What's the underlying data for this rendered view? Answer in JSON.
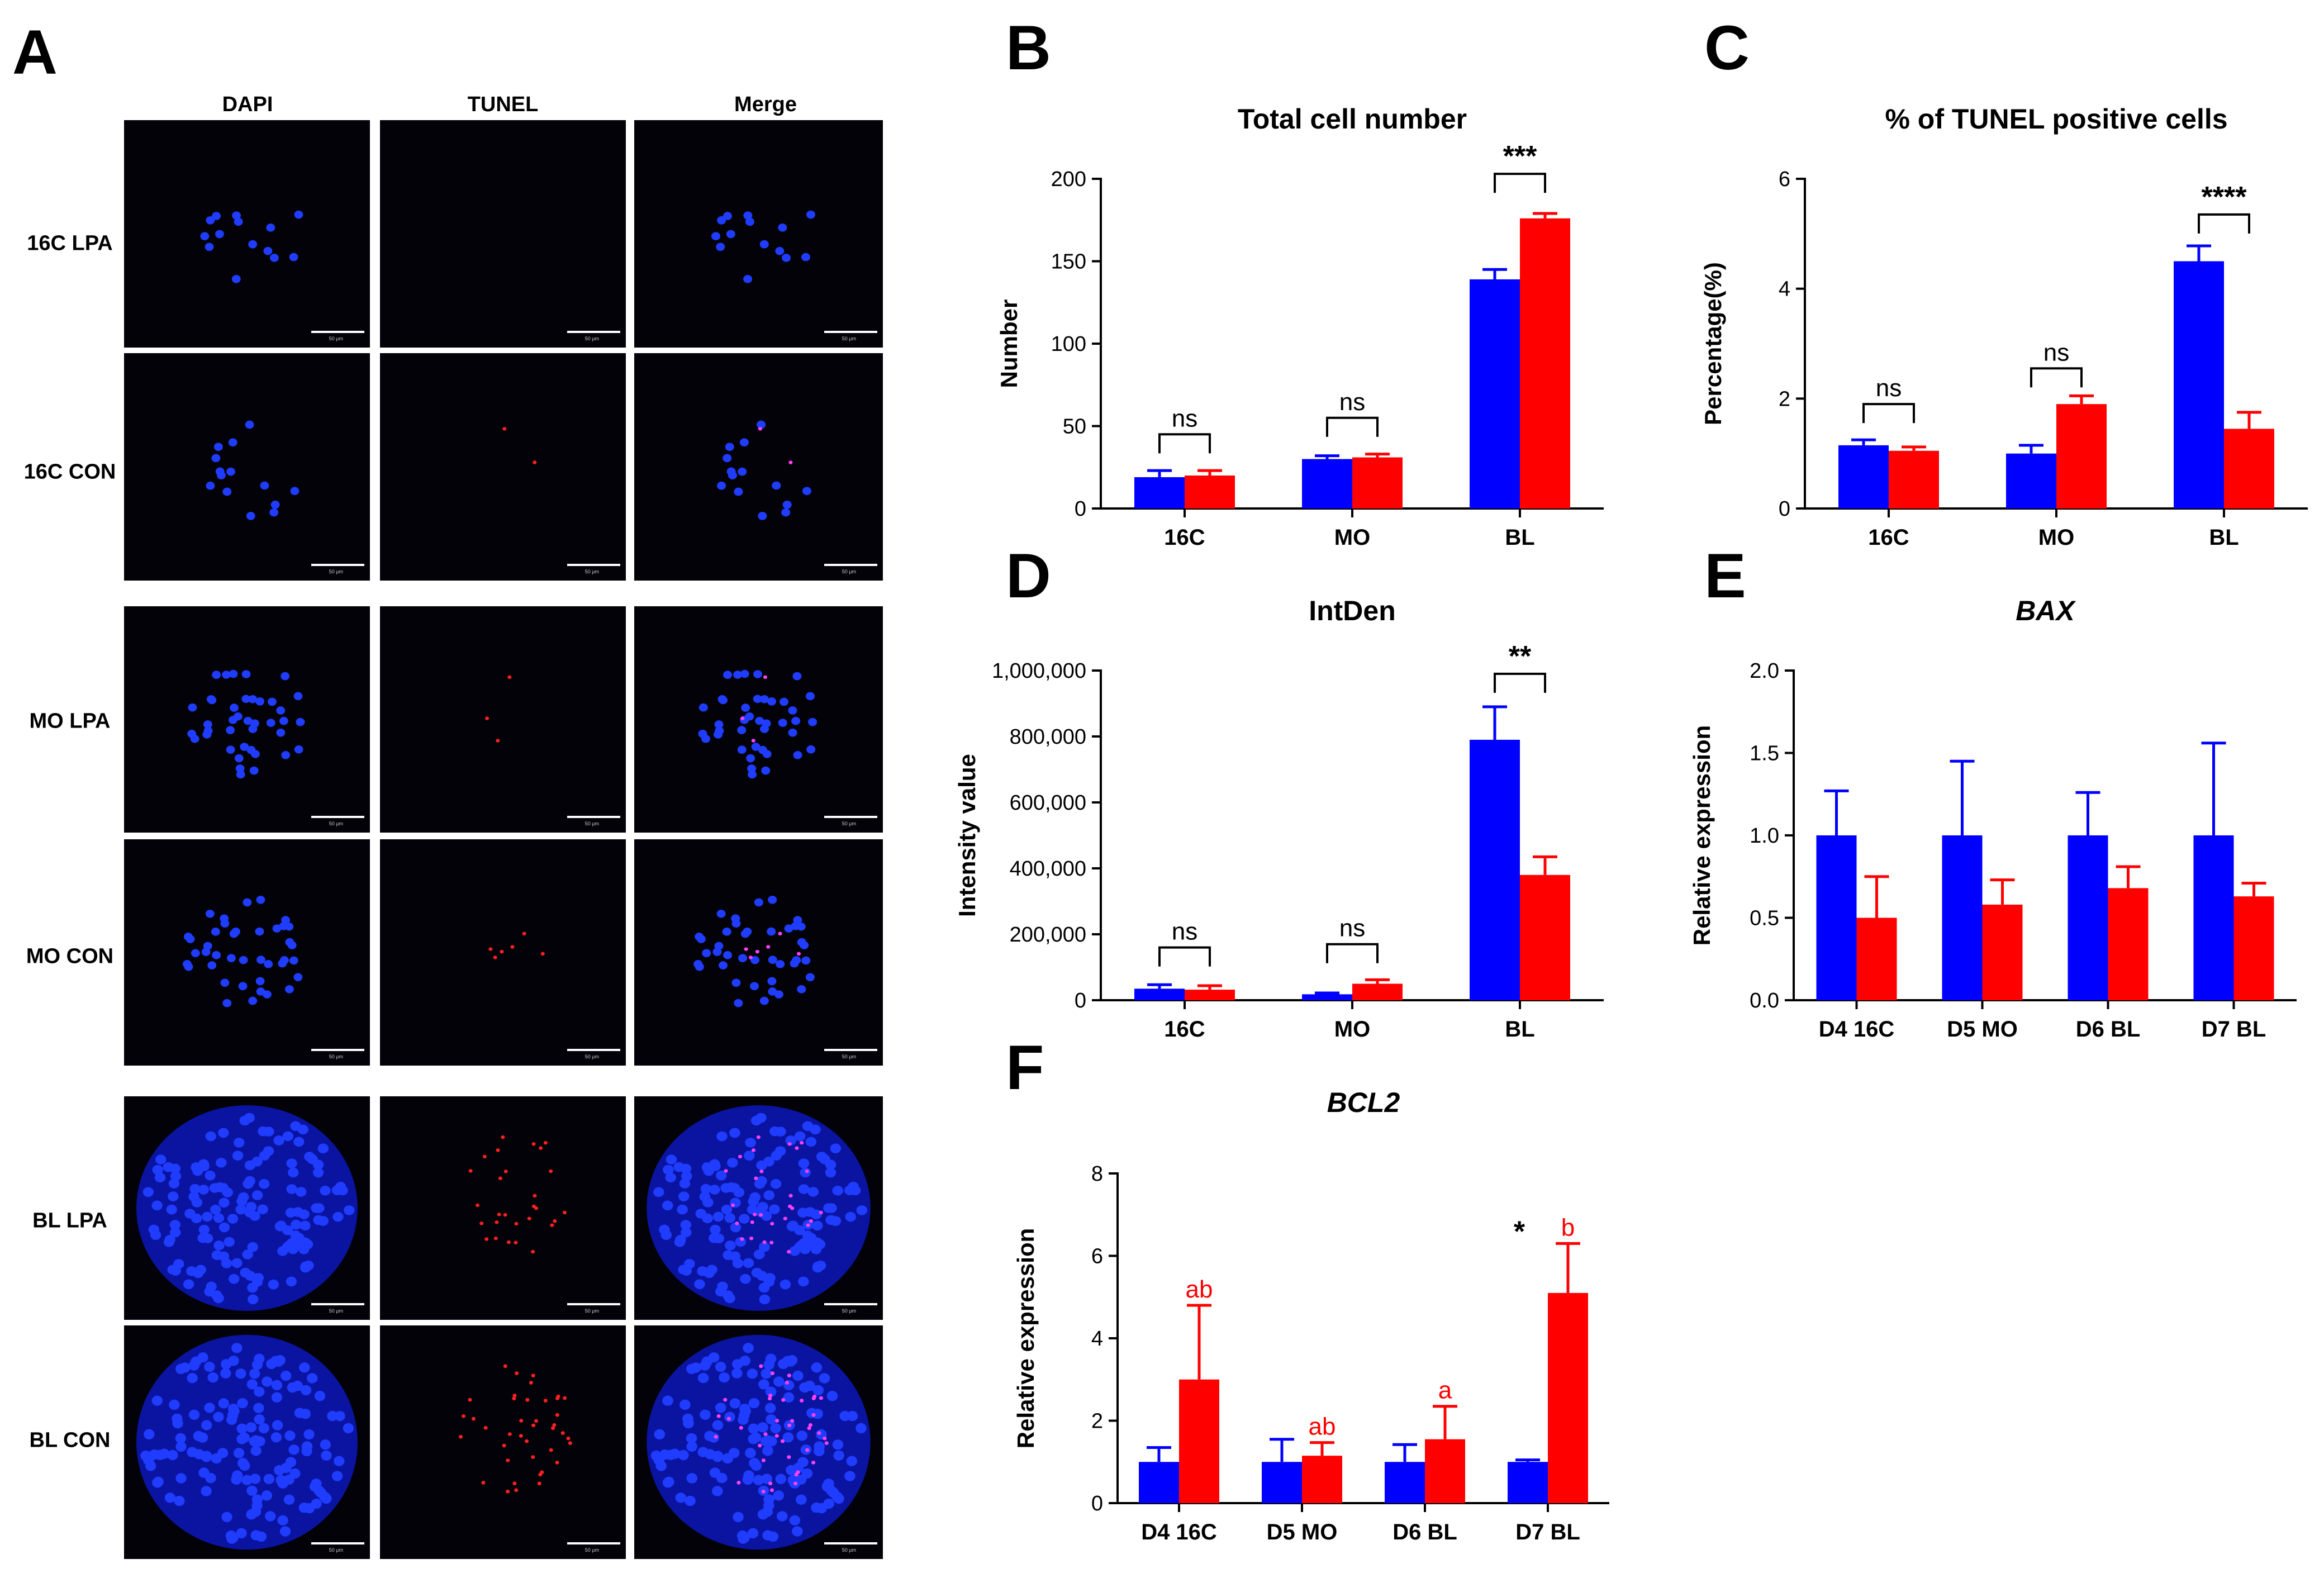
{
  "colors": {
    "blue": "#0000ff",
    "red": "#ff0000",
    "axis": "#000000"
  },
  "panels": {
    "A": {
      "letter": "A",
      "columns": [
        "DAPI",
        "TUNEL",
        "Merge"
      ],
      "rows": [
        "16C LPA",
        "16C CON",
        "MO LPA",
        "MO CON",
        "BL LPA",
        "BL CON"
      ],
      "scale_label": "50 μm"
    }
  },
  "chart_data": [
    {
      "letter": "B",
      "type": "bar",
      "title": "Total cell number",
      "title_italic": false,
      "ylabel": "Number",
      "ylim": [
        0,
        200
      ],
      "yticks": [
        0,
        50,
        100,
        150,
        200
      ],
      "ytick_labels": [
        "0",
        "50",
        "100",
        "150",
        "200"
      ],
      "categories": [
        "16C",
        "MO",
        "BL"
      ],
      "series": [
        {
          "name": "blue",
          "color": "#0000ff",
          "values": [
            19,
            30,
            139
          ],
          "errors": [
            4,
            2,
            6
          ]
        },
        {
          "name": "red",
          "color": "#ff0000",
          "values": [
            20,
            31,
            176
          ],
          "errors": [
            3,
            2,
            3
          ]
        }
      ],
      "significance": [
        {
          "category": 0,
          "label": "ns",
          "y": 45
        },
        {
          "category": 1,
          "label": "ns",
          "y": 55
        },
        {
          "category": 2,
          "label": "***",
          "y": 203
        }
      ],
      "letters": []
    },
    {
      "letter": "C",
      "type": "bar",
      "title": "% of TUNEL positive cells",
      "title_italic": false,
      "ylabel": "Percentage(%)",
      "ylim": [
        0,
        6
      ],
      "yticks": [
        0,
        2,
        4,
        6
      ],
      "ytick_labels": [
        "0",
        "2",
        "4",
        "6"
      ],
      "categories": [
        "16C",
        "MO",
        "BL"
      ],
      "series": [
        {
          "name": "blue",
          "color": "#0000ff",
          "values": [
            1.15,
            1.0,
            4.5
          ],
          "errors": [
            0.1,
            0.15,
            0.28
          ]
        },
        {
          "name": "red",
          "color": "#ff0000",
          "values": [
            1.05,
            1.9,
            1.45
          ],
          "errors": [
            0.07,
            0.15,
            0.3
          ]
        }
      ],
      "significance": [
        {
          "category": 0,
          "label": "ns",
          "y": 1.9
        },
        {
          "category": 1,
          "label": "ns",
          "y": 2.55
        },
        {
          "category": 2,
          "label": "****",
          "y": 5.35
        }
      ],
      "letters": []
    },
    {
      "letter": "D",
      "type": "bar",
      "title": "IntDen",
      "title_italic": false,
      "ylabel": "Intensity value",
      "ylim": [
        0,
        1000000
      ],
      "yticks": [
        0,
        200000,
        400000,
        600000,
        800000,
        1000000
      ],
      "ytick_labels": [
        "0",
        "200,000",
        "400,000",
        "600,000",
        "800,000",
        "1,000,000"
      ],
      "categories": [
        "16C",
        "MO",
        "BL"
      ],
      "series": [
        {
          "name": "blue",
          "color": "#0000ff",
          "values": [
            35000,
            18000,
            790000
          ],
          "errors": [
            12000,
            4000,
            100000
          ]
        },
        {
          "name": "red",
          "color": "#ff0000",
          "values": [
            32000,
            50000,
            380000
          ],
          "errors": [
            12000,
            12000,
            55000
          ]
        }
      ],
      "significance": [
        {
          "category": 0,
          "label": "ns",
          "y": 160000
        },
        {
          "category": 1,
          "label": "ns",
          "y": 170000
        },
        {
          "category": 2,
          "label": "**",
          "y": 990000
        }
      ],
      "letters": []
    },
    {
      "letter": "E",
      "type": "bar",
      "title": "BAX",
      "title_italic": true,
      "ylabel": "Relative expression",
      "ylim": [
        0,
        2
      ],
      "yticks": [
        0,
        0.5,
        1,
        1.5,
        2
      ],
      "ytick_labels": [
        "0.0",
        "0.5",
        "1.0",
        "1.5",
        "2.0"
      ],
      "categories": [
        "D4 16C",
        "D5 MO",
        "D6 BL",
        "D7 BL"
      ],
      "series": [
        {
          "name": "blue",
          "color": "#0000ff",
          "values": [
            1.0,
            1.0,
            1.0,
            1.0
          ],
          "errors": [
            0.27,
            0.45,
            0.26,
            0.56
          ]
        },
        {
          "name": "red",
          "color": "#ff0000",
          "values": [
            0.5,
            0.58,
            0.68,
            0.63
          ],
          "errors": [
            0.25,
            0.15,
            0.13,
            0.08
          ]
        }
      ],
      "significance": [],
      "letters": []
    },
    {
      "letter": "F",
      "type": "bar",
      "title": "BCL2",
      "title_italic": true,
      "ylabel": "Relative expression",
      "ylim": [
        0,
        8
      ],
      "yticks": [
        0,
        2,
        4,
        6,
        8
      ],
      "ytick_labels": [
        "0",
        "2",
        "4",
        "6",
        "8"
      ],
      "categories": [
        "D4 16C",
        "D5 MO",
        "D6 BL",
        "D7 BL"
      ],
      "series": [
        {
          "name": "blue",
          "color": "#0000ff",
          "values": [
            1.0,
            1.0,
            1.0,
            1.0
          ],
          "errors": [
            0.35,
            0.55,
            0.42,
            0.05
          ]
        },
        {
          "name": "red",
          "color": "#ff0000",
          "values": [
            3.0,
            1.15,
            1.55,
            5.1
          ],
          "errors": [
            1.8,
            0.32,
            0.8,
            1.2
          ]
        }
      ],
      "significance": [
        {
          "category": 3,
          "label": "*",
          "y": 6.6,
          "style": "star"
        }
      ],
      "letters": [
        {
          "category": 0,
          "label": "ab"
        },
        {
          "category": 1,
          "label": "ab"
        },
        {
          "category": 2,
          "label": "a"
        },
        {
          "category": 3,
          "label": "b"
        }
      ]
    }
  ]
}
